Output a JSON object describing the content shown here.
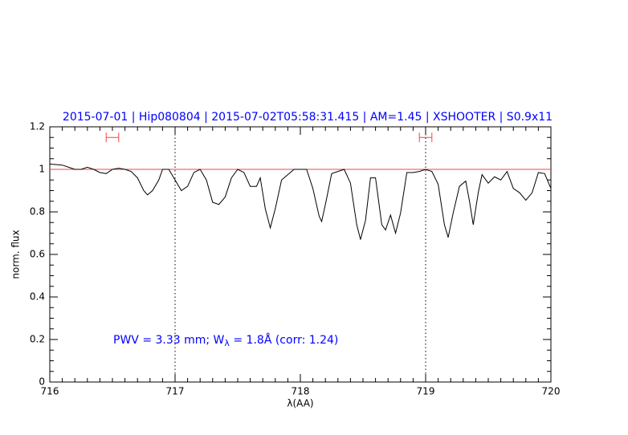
{
  "chart_data": {
    "type": "line",
    "title": "2015-07-01 | Hip080804 | 2015-07-02T05:58:31.415 | AM=1.45 | XSHOOTER | S0.9x11",
    "xlabel": "λ(AA)",
    "ylabel": "norm. flux",
    "annotation": [
      "PWV = 3.33 mm; W",
      "λ",
      " = 1.8Å (corr: 1.24)"
    ],
    "annotation_color": "#0000ff",
    "color": "#000000",
    "x": [
      716.0,
      716.1,
      716.15,
      716.2,
      716.25,
      716.3,
      716.35,
      716.4,
      716.45,
      716.5,
      716.55,
      716.6,
      716.65,
      716.7,
      716.75,
      716.78,
      716.82,
      716.87,
      716.9,
      716.95,
      717.0,
      717.05,
      717.1,
      717.15,
      717.2,
      717.25,
      717.3,
      717.35,
      717.4,
      717.45,
      717.5,
      717.55,
      717.6,
      717.65,
      717.68,
      717.72,
      717.76,
      717.8,
      717.85,
      717.9,
      717.95,
      718.0,
      718.05,
      718.1,
      718.15,
      718.17,
      718.2,
      718.25,
      718.3,
      718.35,
      718.4,
      718.45,
      718.48,
      718.52,
      718.56,
      718.6,
      718.65,
      718.68,
      718.72,
      718.76,
      718.8,
      718.85,
      718.9,
      718.95,
      719.0,
      719.05,
      719.1,
      719.15,
      719.18,
      719.22,
      719.27,
      719.32,
      719.35,
      719.38,
      719.42,
      719.45,
      719.5,
      719.55,
      719.6,
      719.65,
      719.7,
      719.75,
      719.8,
      719.85,
      719.9,
      719.95,
      720.0
    ],
    "values": [
      1.025,
      1.02,
      1.01,
      1.0,
      1.0,
      1.01,
      1.0,
      0.985,
      0.98,
      1.0,
      1.005,
      1.0,
      0.99,
      0.96,
      0.9,
      0.88,
      0.9,
      0.95,
      1.0,
      1.0,
      0.95,
      0.9,
      0.92,
      0.985,
      1.0,
      0.95,
      0.845,
      0.835,
      0.87,
      0.96,
      1.0,
      0.985,
      0.92,
      0.92,
      0.96,
      0.815,
      0.725,
      0.815,
      0.95,
      0.975,
      1.0,
      1.0,
      1.0,
      0.91,
      0.78,
      0.755,
      0.835,
      0.98,
      0.99,
      1.0,
      0.935,
      0.74,
      0.67,
      0.76,
      0.96,
      0.96,
      0.74,
      0.715,
      0.785,
      0.7,
      0.795,
      0.985,
      0.985,
      0.99,
      1.0,
      0.99,
      0.93,
      0.74,
      0.68,
      0.795,
      0.92,
      0.945,
      0.85,
      0.74,
      0.89,
      0.975,
      0.935,
      0.965,
      0.95,
      0.99,
      0.91,
      0.89,
      0.855,
      0.89,
      0.985,
      0.98,
      0.91
    ],
    "xlim": [
      716,
      720
    ],
    "ylim": [
      0,
      1.2
    ],
    "xticks": [
      716,
      717,
      718,
      719,
      720
    ],
    "yticks": [
      0,
      0.2,
      0.4,
      0.6,
      0.8,
      1,
      1.2
    ],
    "hline": 1,
    "hline_color": "#ff4040",
    "vlines": [
      717,
      719
    ],
    "regions": [
      [
        716.45,
        716.55
      ],
      [
        718.95,
        719.05
      ]
    ],
    "region_y": 1.15,
    "region_color": "#ff4040"
  }
}
